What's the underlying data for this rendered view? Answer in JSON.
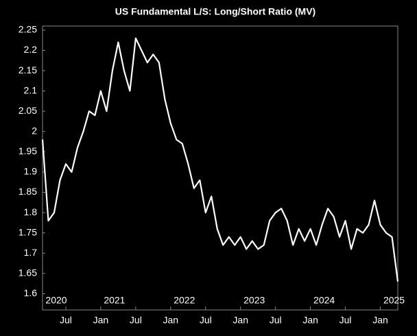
{
  "chart_data": {
    "type": "line",
    "title": "US Fundamental L/S: Long/Short Ratio (MV)",
    "x": [
      "2020-03",
      "2020-04",
      "2020-05",
      "2020-06",
      "2020-07",
      "2020-08",
      "2020-09",
      "2020-10",
      "2020-11",
      "2020-12",
      "2021-01",
      "2021-02",
      "2021-03",
      "2021-04",
      "2021-05",
      "2021-06",
      "2021-07",
      "2021-08",
      "2021-09",
      "2021-10",
      "2021-11",
      "2021-12",
      "2022-01",
      "2022-02",
      "2022-03",
      "2022-04",
      "2022-05",
      "2022-06",
      "2022-07",
      "2022-08",
      "2022-09",
      "2022-10",
      "2022-11",
      "2022-12",
      "2023-01",
      "2023-02",
      "2023-03",
      "2023-04",
      "2023-05",
      "2023-06",
      "2023-07",
      "2023-08",
      "2023-09",
      "2023-10",
      "2023-11",
      "2023-12",
      "2024-01",
      "2024-02",
      "2024-03",
      "2024-04",
      "2024-05",
      "2024-06",
      "2024-07",
      "2024-08",
      "2024-09",
      "2024-10",
      "2024-11",
      "2024-12",
      "2025-01",
      "2025-02",
      "2025-03",
      "2025-04"
    ],
    "series": [
      {
        "name": "Long/Short Ratio (MV)",
        "color": "#ffffff",
        "values": [
          1.98,
          1.78,
          1.8,
          1.88,
          1.92,
          1.9,
          1.96,
          2.0,
          2.05,
          2.04,
          2.1,
          2.05,
          2.15,
          2.22,
          2.15,
          2.1,
          2.23,
          2.2,
          2.17,
          2.19,
          2.17,
          2.08,
          2.02,
          1.98,
          1.97,
          1.92,
          1.86,
          1.88,
          1.8,
          1.84,
          1.76,
          1.72,
          1.74,
          1.72,
          1.74,
          1.71,
          1.73,
          1.71,
          1.72,
          1.78,
          1.8,
          1.81,
          1.78,
          1.72,
          1.76,
          1.73,
          1.76,
          1.72,
          1.77,
          1.81,
          1.79,
          1.74,
          1.78,
          1.71,
          1.76,
          1.75,
          1.77,
          1.83,
          1.77,
          1.75,
          1.74,
          1.63
        ]
      }
    ],
    "xlim": [
      "2020-03",
      "2025-04"
    ],
    "xticks": [
      {
        "value": "2020-07",
        "label": "Jul"
      },
      {
        "value": "2021-01",
        "label": "Jan"
      },
      {
        "value": "2021-07",
        "label": "Jul"
      },
      {
        "value": "2022-01",
        "label": "Jan"
      },
      {
        "value": "2022-07",
        "label": "Jul"
      },
      {
        "value": "2023-01",
        "label": "Jan"
      },
      {
        "value": "2023-07",
        "label": "Jul"
      },
      {
        "value": "2024-01",
        "label": "Jan"
      },
      {
        "value": "2024-07",
        "label": "Jul"
      },
      {
        "value": "2025-01",
        "label": "Jan"
      }
    ],
    "year_ticks": [
      {
        "value": "2020-01",
        "label": "2020"
      },
      {
        "value": "2021-01",
        "label": "2021"
      },
      {
        "value": "2022-01",
        "label": "2022"
      },
      {
        "value": "2023-01",
        "label": "2023"
      },
      {
        "value": "2024-01",
        "label": "2024"
      },
      {
        "value": "2025-01",
        "label": "2025"
      }
    ],
    "ylim": [
      1.56,
      2.26
    ],
    "yticks": [
      1.6,
      1.65,
      1.7,
      1.75,
      1.8,
      1.85,
      1.9,
      1.95,
      2,
      2.05,
      2.1,
      2.15,
      2.2,
      2.25
    ],
    "grid": false
  }
}
